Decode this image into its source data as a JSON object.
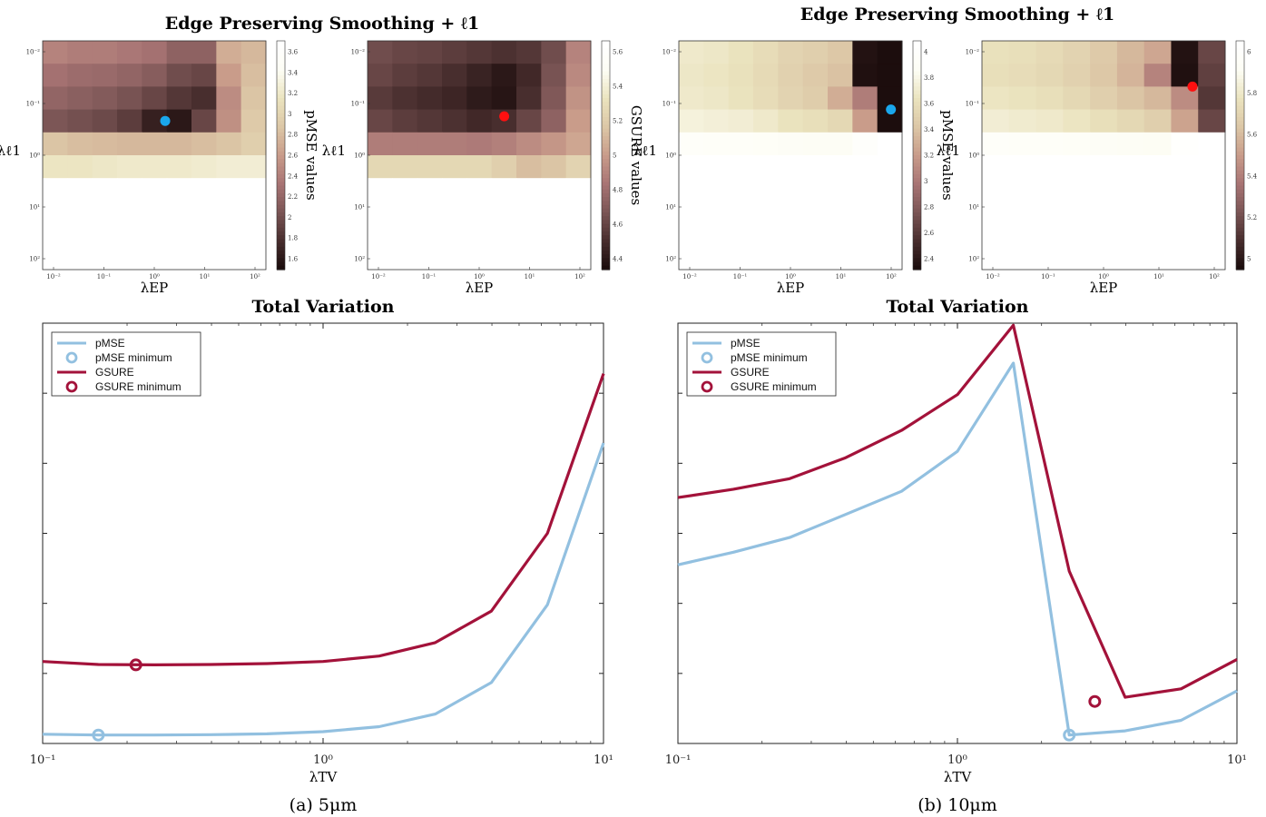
{
  "colors": {
    "pmse": "#92c0e0",
    "gsure": "#a3123a",
    "marker_blue": "#1aa7ec",
    "marker_red": "#ff1010",
    "cmap": [
      "#1c0d0d",
      "#4a2f2f",
      "#7c5656",
      "#a97575",
      "#c99c8a",
      "#dcc7a6",
      "#eae3be",
      "#fdfdf4",
      "#ffffff"
    ]
  },
  "left": {
    "ep_title": "Edge Preserving Smoothing + ℓ1",
    "tv_title": "Total Variation",
    "caption": "(a) 5μm",
    "heatmaps": [
      {
        "ylabel": "λℓ1",
        "xlabel": "λEP",
        "cb_label": "pMSE values",
        "cb_ticks": [
          "3.6",
          "3.4",
          "3.2",
          "3",
          "2.8",
          "2.6",
          "2.4",
          "2.2",
          "2",
          "1.8",
          "1.6"
        ],
        "marker": "blue",
        "x_ticks": [
          "10⁻²",
          "10⁻¹",
          "10⁰",
          "10¹",
          "10²"
        ],
        "y_ticks": [
          "10⁻²",
          "10⁻¹",
          "10⁰",
          "10¹",
          "10²"
        ],
        "grid": [
          [
            0.42,
            0.4,
            0.4,
            0.38,
            0.36,
            0.3,
            0.3,
            0.55,
            0.58
          ],
          [
            0.36,
            0.34,
            0.33,
            0.31,
            0.28,
            0.22,
            0.2,
            0.5,
            0.6
          ],
          [
            0.31,
            0.29,
            0.27,
            0.24,
            0.2,
            0.15,
            0.12,
            0.45,
            0.62
          ],
          [
            0.25,
            0.23,
            0.21,
            0.17,
            0.07,
            0.04,
            0.2,
            0.46,
            0.64
          ],
          [
            0.62,
            0.6,
            0.59,
            0.58,
            0.58,
            0.58,
            0.6,
            0.62,
            0.66
          ],
          [
            0.76,
            0.76,
            0.77,
            0.78,
            0.78,
            0.78,
            0.79,
            0.8,
            0.8
          ],
          [
            1,
            1,
            1,
            1,
            1,
            1,
            1,
            1,
            1
          ],
          [
            1,
            1,
            1,
            1,
            1,
            1,
            1,
            1,
            1
          ],
          [
            1,
            1,
            1,
            1,
            1,
            1,
            1,
            1,
            1
          ],
          [
            1,
            1,
            1,
            1,
            1,
            1,
            1,
            1,
            1
          ]
        ],
        "min_cell": [
          3,
          4.7
        ]
      },
      {
        "ylabel": "λℓ1",
        "xlabel": "λEP",
        "cb_label": "GSURE values",
        "cb_ticks": [
          "5.6",
          "5.4",
          "5.2",
          "5",
          "4.8",
          "4.6",
          "4.4"
        ],
        "marker": "red",
        "x_ticks": [
          "10⁻²",
          "10⁻¹",
          "10⁰",
          "10¹",
          "10²"
        ],
        "y_ticks": [
          "10⁻²",
          "10⁻¹",
          "10⁰",
          "10¹",
          "10²"
        ],
        "grid": [
          [
            0.22,
            0.2,
            0.19,
            0.17,
            0.15,
            0.13,
            0.15,
            0.22,
            0.42
          ],
          [
            0.2,
            0.17,
            0.15,
            0.12,
            0.08,
            0.04,
            0.1,
            0.24,
            0.44
          ],
          [
            0.16,
            0.13,
            0.11,
            0.09,
            0.05,
            0.03,
            0.12,
            0.26,
            0.47
          ],
          [
            0.2,
            0.17,
            0.15,
            0.13,
            0.1,
            0.12,
            0.2,
            0.3,
            0.5
          ],
          [
            0.4,
            0.4,
            0.4,
            0.4,
            0.39,
            0.41,
            0.45,
            0.48,
            0.53
          ],
          [
            0.7,
            0.7,
            0.7,
            0.7,
            0.7,
            0.66,
            0.6,
            0.62,
            0.68
          ],
          [
            1,
            1,
            1,
            1,
            1,
            1,
            1,
            1,
            1
          ],
          [
            1,
            1,
            1,
            1,
            1,
            1,
            1,
            1,
            1
          ],
          [
            1,
            1,
            1,
            1,
            1,
            1,
            1,
            1,
            1
          ],
          [
            1,
            1,
            1,
            1,
            1,
            1,
            1,
            1,
            1
          ]
        ],
        "min_cell": [
          2.8,
          5.3
        ]
      }
    ],
    "tv_chart": {
      "type": "line",
      "xlabel": "λTV",
      "x_ticks": [
        "10⁻¹",
        "10⁰",
        "10¹"
      ],
      "xlim": [
        0.1,
        10
      ],
      "ylim": [
        0,
        1
      ],
      "series": [
        {
          "name": "pMSE",
          "x": [
            0.1,
            0.158,
            0.251,
            0.398,
            0.631,
            1.0,
            1.585,
            2.512,
            3.981,
            6.31,
            10
          ],
          "y": [
            0.022,
            0.02,
            0.02,
            0.021,
            0.023,
            0.028,
            0.04,
            0.07,
            0.145,
            0.33,
            0.715
          ]
        },
        {
          "name": "GSURE",
          "x": [
            0.1,
            0.158,
            0.251,
            0.398,
            0.631,
            1.0,
            1.585,
            2.512,
            3.981,
            6.31,
            10
          ],
          "y": [
            0.195,
            0.188,
            0.187,
            0.188,
            0.19,
            0.195,
            0.208,
            0.24,
            0.315,
            0.5,
            0.88
          ]
        }
      ],
      "minima": [
        {
          "name": "pMSE minimum",
          "x": 0.158,
          "y": 0.02
        },
        {
          "name": "GSURE minimum",
          "x": 0.215,
          "y": 0.187
        }
      ]
    }
  },
  "right": {
    "ep_title": "Edge Preserving Smoothing + ℓ1",
    "tv_title": "Total Variation",
    "caption": "(b) 10μm",
    "heatmaps": [
      {
        "ylabel": "λℓ1",
        "xlabel": "λEP",
        "cb_label": "pMSE values",
        "cb_ticks": [
          "4",
          "3.8",
          "3.6",
          "3.4",
          "3.2",
          "3",
          "2.8",
          "2.6",
          "2.4"
        ],
        "marker": "blue",
        "x_ticks": [
          "10⁻²",
          "10⁻¹",
          "10⁰",
          "10¹",
          "10²"
        ],
        "y_ticks": [
          "10⁻²",
          "10⁻¹",
          "10⁰",
          "10¹",
          "10²"
        ],
        "grid": [
          [
            0.78,
            0.77,
            0.75,
            0.72,
            0.68,
            0.66,
            0.63,
            0.02,
            0.0
          ],
          [
            0.77,
            0.76,
            0.74,
            0.71,
            0.67,
            0.64,
            0.61,
            0.01,
            0.0
          ],
          [
            0.78,
            0.77,
            0.75,
            0.72,
            0.68,
            0.65,
            0.55,
            0.4,
            0.0
          ],
          [
            0.82,
            0.81,
            0.8,
            0.78,
            0.75,
            0.73,
            0.7,
            0.5,
            0.0
          ],
          [
            0.93,
            0.92,
            0.92,
            0.91,
            0.9,
            0.89,
            0.89,
            0.95,
            1
          ],
          [
            1,
            1,
            1,
            1,
            1,
            1,
            1,
            1,
            1
          ],
          [
            1,
            1,
            1,
            1,
            1,
            1,
            1,
            1,
            1
          ],
          [
            1,
            1,
            1,
            1,
            1,
            1,
            1,
            1,
            1
          ],
          [
            1,
            1,
            1,
            1,
            1,
            1,
            1,
            1,
            1
          ],
          [
            1,
            1,
            1,
            1,
            1,
            1,
            1,
            1,
            1
          ]
        ],
        "min_cell": [
          2.5,
          8.5
        ]
      },
      {
        "ylabel": "λℓ1",
        "xlabel": "λEP",
        "cb_label": "GSURE values",
        "cb_ticks": [
          "6",
          "5.8",
          "5.6",
          "5.4",
          "5.2",
          "5"
        ],
        "marker": "red",
        "x_ticks": [
          "10⁻²",
          "10⁻¹",
          "10⁰",
          "10¹",
          "10²"
        ],
        "y_ticks": [
          "10⁻²",
          "10⁻¹",
          "10⁰",
          "10¹",
          "10²"
        ],
        "grid": [
          [
            0.74,
            0.73,
            0.71,
            0.68,
            0.64,
            0.58,
            0.53,
            0.02,
            0.2
          ],
          [
            0.73,
            0.72,
            0.7,
            0.67,
            0.63,
            0.57,
            0.42,
            0.01,
            0.18
          ],
          [
            0.76,
            0.75,
            0.73,
            0.7,
            0.66,
            0.62,
            0.58,
            0.45,
            0.15
          ],
          [
            0.8,
            0.79,
            0.78,
            0.76,
            0.73,
            0.7,
            0.66,
            0.52,
            0.2
          ],
          [
            0.93,
            0.92,
            0.92,
            0.91,
            0.9,
            0.89,
            0.88,
            0.98,
            1
          ],
          [
            1,
            1,
            1,
            1,
            1,
            1,
            1,
            1,
            1
          ],
          [
            1,
            1,
            1,
            1,
            1,
            1,
            1,
            1,
            1
          ],
          [
            1,
            1,
            1,
            1,
            1,
            1,
            1,
            1,
            1
          ],
          [
            1,
            1,
            1,
            1,
            1,
            1,
            1,
            1,
            1
          ],
          [
            1,
            1,
            1,
            1,
            1,
            1,
            1,
            1,
            1
          ]
        ],
        "min_cell": [
          1.5,
          7.7
        ]
      }
    ],
    "tv_chart": {
      "type": "line",
      "xlabel": "λTV",
      "x_ticks": [
        "10⁻¹",
        "10⁰",
        "10¹"
      ],
      "xlim": [
        0.1,
        10
      ],
      "ylim": [
        0,
        1
      ],
      "series": [
        {
          "name": "pMSE",
          "x": [
            0.1,
            0.158,
            0.251,
            0.398,
            0.631,
            1.0,
            1.585,
            2.512,
            3.981,
            6.31,
            10
          ],
          "y": [
            0.425,
            0.455,
            0.49,
            0.545,
            0.6,
            0.695,
            0.905,
            0.02,
            0.03,
            0.055,
            0.125
          ]
        },
        {
          "name": "GSURE",
          "x": [
            0.1,
            0.158,
            0.251,
            0.398,
            0.631,
            1.0,
            1.585,
            2.512,
            3.981,
            6.31,
            10
          ],
          "y": [
            0.585,
            0.605,
            0.63,
            0.68,
            0.745,
            0.83,
            0.995,
            0.41,
            0.11,
            0.13,
            0.2
          ]
        }
      ],
      "minima": [
        {
          "name": "pMSE minimum",
          "x": 2.512,
          "y": 0.02
        },
        {
          "name": "GSURE minimum",
          "x": 3.1,
          "y": 0.1
        }
      ]
    }
  }
}
